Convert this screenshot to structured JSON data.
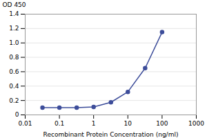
{
  "chart_data": {
    "type": "line",
    "x": [
      0.032,
      0.1,
      0.32,
      1,
      3.2,
      10,
      32,
      100
    ],
    "values": [
      0.1,
      0.1,
      0.1,
      0.11,
      0.175,
      0.32,
      0.65,
      1.15
    ],
    "color": "#3d4d9a",
    "marker": "circle",
    "xlabel": "Recombinant Protein Concentration (ng/ml)",
    "ylabel": "OD 450",
    "log": "x",
    "xlim": [
      0.01,
      1000
    ],
    "ylim": [
      0,
      1.4
    ],
    "xticks": [
      0.01,
      0.1,
      1,
      10,
      100,
      1000
    ],
    "yticks": [
      0,
      0.2,
      0.4,
      0.6,
      0.8,
      {
        "value": 1.0,
        "label": "1.0"
      },
      1.2,
      1.4
    ],
    "grid": "y"
  }
}
